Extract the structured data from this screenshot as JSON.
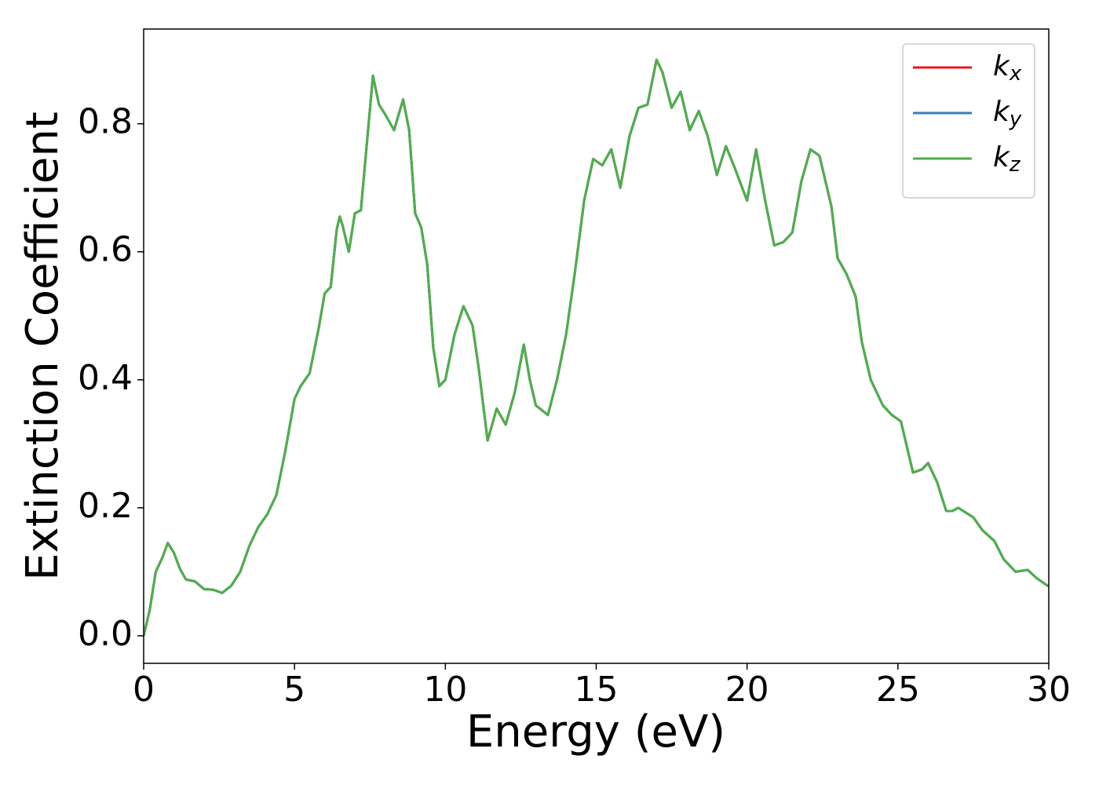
{
  "chart_data": {
    "type": "line",
    "xlabel": "Energy (eV)",
    "ylabel": "Extinction Coefficient",
    "x": [
      0,
      0.2,
      0.4,
      0.6,
      0.8,
      1.0,
      1.2,
      1.4,
      1.7,
      2.0,
      2.3,
      2.6,
      2.9,
      3.2,
      3.5,
      3.8,
      4.1,
      4.4,
      4.7,
      5.0,
      5.2,
      5.5,
      5.8,
      6.0,
      6.2,
      6.4,
      6.5,
      6.6,
      6.8,
      7.0,
      7.2,
      7.4,
      7.6,
      7.8,
      8.0,
      8.3,
      8.6,
      8.8,
      9.0,
      9.2,
      9.4,
      9.6,
      9.8,
      10.0,
      10.3,
      10.6,
      10.9,
      11.1,
      11.4,
      11.7,
      12.0,
      12.3,
      12.6,
      12.8,
      13.0,
      13.4,
      13.7,
      14.0,
      14.3,
      14.6,
      14.9,
      15.2,
      15.5,
      15.8,
      16.1,
      16.4,
      16.7,
      17.0,
      17.2,
      17.5,
      17.8,
      18.1,
      18.4,
      18.7,
      19.0,
      19.3,
      19.6,
      20.0,
      20.3,
      20.6,
      20.9,
      21.2,
      21.5,
      21.8,
      22.1,
      22.4,
      22.8,
      23.0,
      23.3,
      23.6,
      23.8,
      24.1,
      24.5,
      24.8,
      25.1,
      25.5,
      25.8,
      26.0,
      26.3,
      26.6,
      26.8,
      27.0,
      27.5,
      27.8,
      28.2,
      28.5,
      28.9,
      29.3,
      29.6,
      30.0
    ],
    "series": [
      {
        "name": "kx",
        "color": "#e41a1c",
        "values": [
          0,
          0.04,
          0.1,
          0.12,
          0.145,
          0.13,
          0.105,
          0.088,
          0.085,
          0.073,
          0.072,
          0.067,
          0.078,
          0.1,
          0.14,
          0.17,
          0.19,
          0.22,
          0.29,
          0.37,
          0.39,
          0.41,
          0.48,
          0.535,
          0.545,
          0.635,
          0.655,
          0.64,
          0.6,
          0.66,
          0.665,
          0.77,
          0.875,
          0.83,
          0.815,
          0.79,
          0.838,
          0.79,
          0.66,
          0.638,
          0.58,
          0.45,
          0.39,
          0.4,
          0.47,
          0.515,
          0.485,
          0.42,
          0.305,
          0.355,
          0.33,
          0.38,
          0.455,
          0.4,
          0.36,
          0.345,
          0.4,
          0.47,
          0.57,
          0.68,
          0.745,
          0.735,
          0.76,
          0.7,
          0.78,
          0.825,
          0.83,
          0.9,
          0.88,
          0.825,
          0.85,
          0.79,
          0.82,
          0.78,
          0.72,
          0.765,
          0.73,
          0.68,
          0.76,
          0.68,
          0.61,
          0.615,
          0.63,
          0.71,
          0.76,
          0.75,
          0.67,
          0.59,
          0.565,
          0.53,
          0.46,
          0.4,
          0.36,
          0.345,
          0.335,
          0.255,
          0.26,
          0.27,
          0.24,
          0.195,
          0.195,
          0.2,
          0.185,
          0.165,
          0.148,
          0.12,
          0.1,
          0.103,
          0.09,
          0.077
        ]
      },
      {
        "name": "ky",
        "color": "#377eb8",
        "values": [
          0,
          0.04,
          0.1,
          0.12,
          0.145,
          0.13,
          0.105,
          0.088,
          0.085,
          0.073,
          0.072,
          0.067,
          0.078,
          0.1,
          0.14,
          0.17,
          0.19,
          0.22,
          0.29,
          0.37,
          0.39,
          0.41,
          0.48,
          0.535,
          0.545,
          0.635,
          0.655,
          0.64,
          0.6,
          0.66,
          0.665,
          0.77,
          0.875,
          0.83,
          0.815,
          0.79,
          0.838,
          0.79,
          0.66,
          0.638,
          0.58,
          0.45,
          0.39,
          0.4,
          0.47,
          0.515,
          0.485,
          0.42,
          0.305,
          0.355,
          0.33,
          0.38,
          0.455,
          0.4,
          0.36,
          0.345,
          0.4,
          0.47,
          0.57,
          0.68,
          0.745,
          0.735,
          0.76,
          0.7,
          0.78,
          0.825,
          0.83,
          0.9,
          0.88,
          0.825,
          0.85,
          0.79,
          0.82,
          0.78,
          0.72,
          0.765,
          0.73,
          0.68,
          0.76,
          0.68,
          0.61,
          0.615,
          0.63,
          0.71,
          0.76,
          0.75,
          0.67,
          0.59,
          0.565,
          0.53,
          0.46,
          0.4,
          0.36,
          0.345,
          0.335,
          0.255,
          0.26,
          0.27,
          0.24,
          0.195,
          0.195,
          0.2,
          0.185,
          0.165,
          0.148,
          0.12,
          0.1,
          0.103,
          0.09,
          0.077
        ]
      },
      {
        "name": "kz",
        "color": "#4daf4a",
        "values": [
          0,
          0.04,
          0.1,
          0.12,
          0.145,
          0.13,
          0.105,
          0.088,
          0.085,
          0.073,
          0.072,
          0.067,
          0.078,
          0.1,
          0.14,
          0.17,
          0.19,
          0.22,
          0.29,
          0.37,
          0.39,
          0.41,
          0.48,
          0.535,
          0.545,
          0.635,
          0.655,
          0.64,
          0.6,
          0.66,
          0.665,
          0.77,
          0.875,
          0.83,
          0.815,
          0.79,
          0.838,
          0.79,
          0.66,
          0.638,
          0.58,
          0.45,
          0.39,
          0.4,
          0.47,
          0.515,
          0.485,
          0.42,
          0.305,
          0.355,
          0.33,
          0.38,
          0.455,
          0.4,
          0.36,
          0.345,
          0.4,
          0.47,
          0.57,
          0.68,
          0.745,
          0.735,
          0.76,
          0.7,
          0.78,
          0.825,
          0.83,
          0.9,
          0.88,
          0.825,
          0.85,
          0.79,
          0.82,
          0.78,
          0.72,
          0.765,
          0.73,
          0.68,
          0.76,
          0.68,
          0.61,
          0.615,
          0.63,
          0.71,
          0.76,
          0.75,
          0.67,
          0.59,
          0.565,
          0.53,
          0.46,
          0.4,
          0.36,
          0.345,
          0.335,
          0.255,
          0.26,
          0.27,
          0.24,
          0.195,
          0.195,
          0.2,
          0.185,
          0.165,
          0.148,
          0.12,
          0.1,
          0.103,
          0.09,
          0.077
        ]
      }
    ],
    "xlim": [
      0,
      30
    ],
    "xticks": [
      0,
      5,
      10,
      15,
      20,
      25,
      30
    ],
    "ylim": [
      -0.043,
      0.948
    ],
    "yticks": [
      {
        "value": 0,
        "label": "0.0"
      },
      0.2,
      0.4,
      0.6,
      0.8
    ],
    "grid": false,
    "legend": "upper right"
  }
}
